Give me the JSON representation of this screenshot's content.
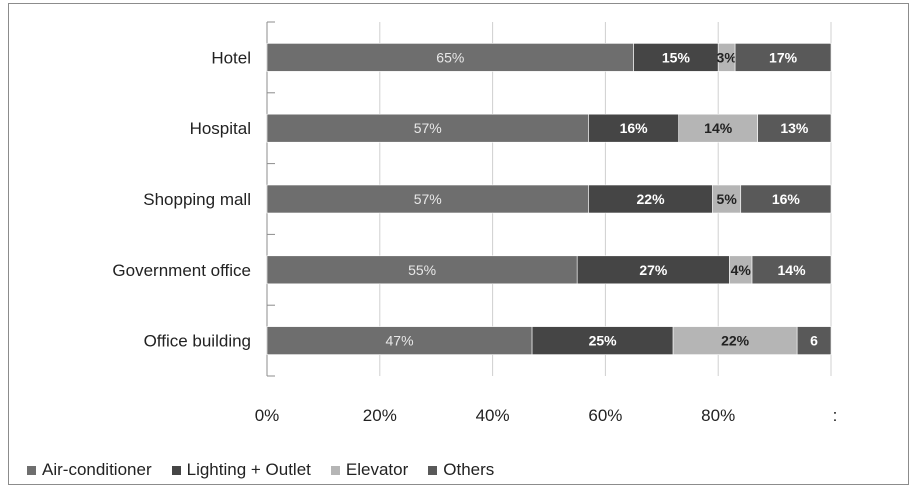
{
  "chart_data": {
    "type": "bar",
    "orientation": "horizontal",
    "stacked": true,
    "categories": [
      "Hotel",
      "Hospital",
      "Shopping mall",
      "Government office",
      "Office building"
    ],
    "series": [
      {
        "name": "Air-conditioner",
        "values": [
          65,
          57,
          57,
          55,
          47
        ],
        "labels": [
          "65%",
          "57%",
          "57%",
          "55%",
          "47%"
        ],
        "color": "#6e6e6e"
      },
      {
        "name": "Lighting + Outlet",
        "values": [
          15,
          16,
          22,
          27,
          25
        ],
        "labels": [
          "15%",
          "16%",
          "22%",
          "27%",
          "25%"
        ],
        "color": "#454545"
      },
      {
        "name": "Elevator",
        "values": [
          3,
          14,
          5,
          4,
          22
        ],
        "labels": [
          "3%",
          "14%",
          "5%",
          "4%",
          "22%"
        ],
        "color": "#b5b5b5"
      },
      {
        "name": "Others",
        "values": [
          17,
          13,
          16,
          14,
          6
        ],
        "labels": [
          "17%",
          "13%",
          "16%",
          "14%",
          "6"
        ],
        "color": "#595959"
      }
    ],
    "xlim": [
      0,
      100
    ],
    "x_tick_labels": [
      "0%",
      "20%",
      "40%",
      "60%",
      "80%",
      ":"
    ],
    "xlabel": "",
    "ylabel": "",
    "title": "",
    "grid": true,
    "legend_position": "bottom-left"
  }
}
